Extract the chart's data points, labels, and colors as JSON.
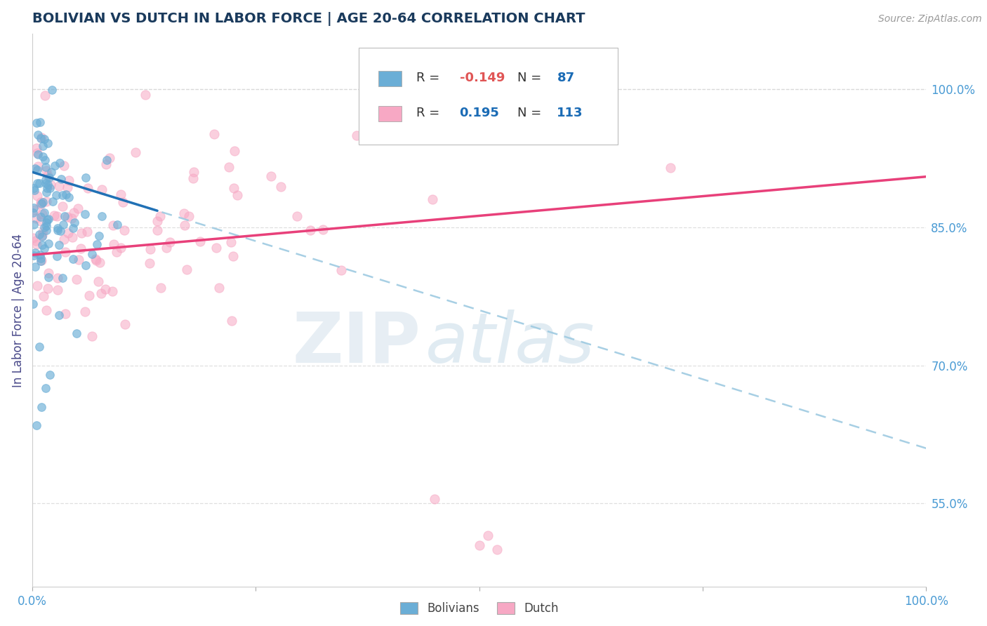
{
  "title": "BOLIVIAN VS DUTCH IN LABOR FORCE | AGE 20-64 CORRELATION CHART",
  "source_text": "Source: ZipAtlas.com",
  "ylabel": "In Labor Force | Age 20-64",
  "xlim": [
    0.0,
    1.0
  ],
  "ylim": [
    0.46,
    1.06
  ],
  "right_yticks": [
    0.55,
    0.7,
    0.85,
    1.0
  ],
  "right_yticklabels": [
    "55.0%",
    "70.0%",
    "85.0%",
    "100.0%"
  ],
  "legend_R1": "-0.149",
  "legend_N1": "87",
  "legend_R2": "0.195",
  "legend_N2": "113",
  "legend_label1": "Bolivians",
  "legend_label2": "Dutch",
  "blue_dot_color": "#6baed6",
  "pink_dot_color": "#f7a8c4",
  "blue_line_color": "#2171b5",
  "blue_dash_color": "#9ecae1",
  "pink_line_color": "#e8407a",
  "R1": -0.149,
  "N1": 87,
  "R2": 0.195,
  "N2": 113,
  "watermark_zip": "ZIP",
  "watermark_atlas": "atlas",
  "title_color": "#1a3a5c",
  "axis_label_color": "#4a4a8a",
  "tick_label_color": "#4a9bd4",
  "background_color": "#ffffff",
  "grid_color": "#d8d8d8",
  "legend_text_color": "#333333",
  "legend_val_color": "#1a6bb5",
  "legend_neg_color": "#e05555"
}
